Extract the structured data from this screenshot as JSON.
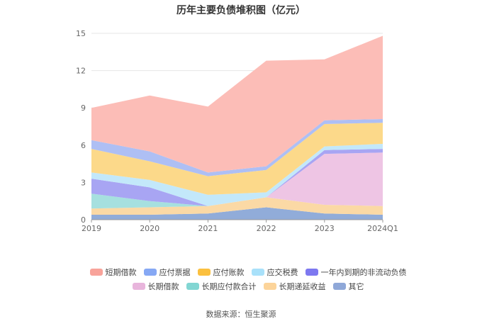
{
  "chart_data": {
    "type": "area",
    "stacked": true,
    "title": "历年主要负债堆积图（亿元）",
    "categories": [
      "2019",
      "2020",
      "2021",
      "2022",
      "2023",
      "2024Q1"
    ],
    "ylim": [
      0,
      15
    ],
    "yticks": [
      "0",
      "3",
      "6",
      "9",
      "12",
      "15"
    ],
    "grid": true,
    "legend_position": "bottom",
    "series": [
      {
        "name": "其它",
        "color": "#91acd9",
        "values": [
          0.4,
          0.4,
          0.5,
          1.0,
          0.5,
          0.4
        ]
      },
      {
        "name": "长期递延收益",
        "color": "#fbd9a5",
        "values": [
          0.5,
          0.6,
          0.6,
          0.8,
          0.7,
          0.7
        ]
      },
      {
        "name": "长期应付款合计",
        "color": "#a6e0df",
        "values": [
          1.2,
          0.5,
          0.0,
          0.0,
          0.0,
          0.0
        ]
      },
      {
        "name": "长期借款",
        "color": "#eec5e4",
        "values": [
          0.0,
          0.0,
          0.0,
          0.0,
          4.1,
          4.3
        ]
      },
      {
        "name": "一年内到期的非流动负债",
        "color": "#a8a5f3",
        "values": [
          1.2,
          1.1,
          0.0,
          0.0,
          0.3,
          0.3
        ]
      },
      {
        "name": "应交税费",
        "color": "#c3e8fa",
        "values": [
          0.5,
          0.6,
          0.9,
          0.4,
          0.3,
          0.4
        ]
      },
      {
        "name": "应付账款",
        "color": "#fcd98a",
        "values": [
          1.9,
          1.5,
          1.5,
          1.8,
          1.8,
          1.7
        ]
      },
      {
        "name": "应付票据",
        "color": "#aebff4",
        "values": [
          0.7,
          0.8,
          0.3,
          0.3,
          0.3,
          0.3
        ]
      },
      {
        "name": "短期借款",
        "color": "#fcbdb7",
        "values": [
          2.6,
          4.5,
          5.3,
          8.5,
          4.9,
          6.7
        ]
      }
    ]
  },
  "legend": {
    "row1": [
      {
        "label": "短期借款",
        "color": "#f8a39a"
      },
      {
        "label": "应付票据",
        "color": "#86a8f4"
      },
      {
        "label": "应付账款",
        "color": "#fbc03f"
      },
      {
        "label": "应交税费",
        "color": "#a9e1fa"
      },
      {
        "label": "一年内到期的非流动负债",
        "color": "#7d78f0"
      }
    ],
    "row2": [
      {
        "label": "长期借款",
        "color": "#e8b5dc"
      },
      {
        "label": "长期应付款合计",
        "color": "#82d6d3"
      },
      {
        "label": "长期递延收益",
        "color": "#fcd49a"
      },
      {
        "label": "其它",
        "color": "#8fa8d8"
      }
    ]
  },
  "source": "数据来源：恒生聚源"
}
